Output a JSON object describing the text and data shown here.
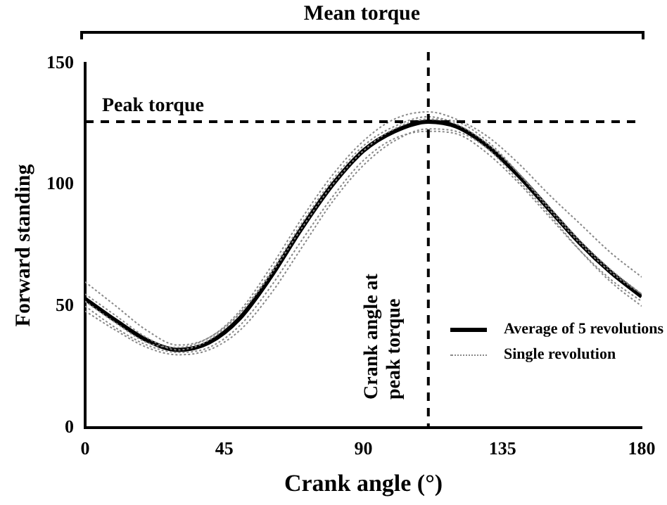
{
  "chart_data": {
    "type": "line",
    "xlabel": "Crank angle (°)",
    "ylabel": "Forward standing",
    "annotations": [
      "Mean torque"
    ],
    "x": [
      0,
      10,
      20,
      30,
      40,
      50,
      60,
      70,
      80,
      90,
      100,
      111,
      120,
      130,
      140,
      150,
      160,
      170,
      180
    ],
    "xlim": [
      0,
      180
    ],
    "xticks": [
      0,
      45,
      90,
      135,
      180
    ],
    "ylim": [
      0,
      150
    ],
    "yticks": [
      0,
      50,
      100,
      150
    ],
    "grid": false,
    "legend": "bottom right",
    "marker": "none",
    "series": [
      {
        "name": "Average of 5 revolutions",
        "color": "#000000",
        "line_style": "solid",
        "values": [
          53,
          44,
          36,
          32,
          35,
          45,
          62,
          82,
          100,
          114,
          122,
          126,
          124,
          116,
          104,
          90,
          76,
          64,
          54
        ]
      },
      {
        "name": "Single revolution",
        "color": "#888888",
        "line_style": "dotted",
        "values": [
          60,
          50,
          40,
          34,
          37,
          48,
          66,
          86,
          104,
          118,
          127,
          130,
          127,
          120,
          109,
          96,
          84,
          72,
          62
        ]
      },
      {
        "color": "#888888",
        "line_style": "dotted",
        "values": [
          50,
          41,
          34,
          31,
          33,
          42,
          58,
          77,
          95,
          110,
          119,
          122,
          121,
          113,
          101,
          87,
          73,
          61,
          52
        ]
      },
      {
        "color": "#888888",
        "line_style": "dotted",
        "values": [
          55,
          46,
          37,
          32,
          36,
          47,
          64,
          84,
          102,
          116,
          124,
          128,
          125,
          117,
          105,
          91,
          77,
          65,
          55
        ]
      },
      {
        "color": "#888888",
        "line_style": "dotted",
        "values": [
          48,
          40,
          33,
          30,
          32,
          40,
          55,
          74,
          93,
          108,
          118,
          123,
          122,
          115,
          102,
          88,
          73,
          60,
          50
        ]
      },
      {
        "color": "#888888",
        "line_style": "dotted",
        "values": [
          52,
          43,
          35,
          33,
          37,
          47,
          63,
          82,
          100,
          114,
          123,
          127,
          126,
          118,
          105,
          90,
          76,
          64,
          55
        ]
      }
    ],
    "ref_lines": [
      {
        "axis": "y",
        "value": 126,
        "label": "Peak torque",
        "line_style": "dashed",
        "color": "#000000"
      },
      {
        "axis": "x",
        "value": 111,
        "label": "Crank angle at peak torque",
        "line_style": "dashed",
        "color": "#000000"
      }
    ]
  }
}
